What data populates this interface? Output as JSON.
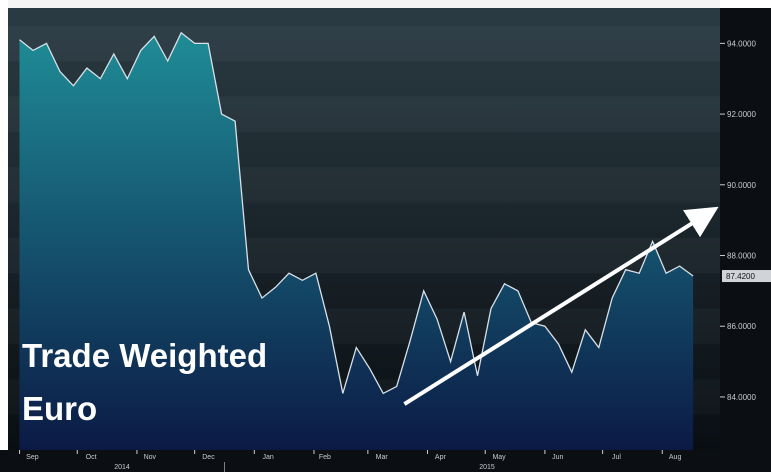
{
  "overlay_text": [
    "Trade Weighted",
    "Euro"
  ],
  "colors": {
    "background_top": "#2d3e46",
    "background_bottom": "#0a0f14",
    "area_top": "#1f8c96",
    "area_bottom": "#0b1a45",
    "line": "#d8e0e8",
    "arrow": "#ffffff",
    "axis_text": "#c8ccd0",
    "last_value_box": "#d0d4d8"
  },
  "chart_data": {
    "type": "area",
    "title": "",
    "xlabel": "",
    "ylabel": "",
    "ylim": [
      82.5,
      95.0
    ],
    "y_ticks": [
      "94.0000",
      "92.0000",
      "90.0000",
      "88.0000",
      "86.0000",
      "84.0000"
    ],
    "y_tick_values": [
      94,
      92,
      90,
      88,
      86,
      84
    ],
    "last_value_label": "87.4200",
    "last_value": 87.42,
    "x_tick_labels": [
      "Sep",
      "Oct",
      "Nov",
      "Dec",
      "Jan",
      "Feb",
      "Mar",
      "Apr",
      "May",
      "Jun",
      "Jul",
      "Aug"
    ],
    "year_labels": [
      "2014",
      "2015"
    ],
    "grid": false,
    "x": [
      "2014-09-01",
      "2014-09-08",
      "2014-09-15",
      "2014-09-22",
      "2014-09-29",
      "2014-10-06",
      "2014-10-13",
      "2014-10-20",
      "2014-10-27",
      "2014-11-03",
      "2014-11-10",
      "2014-11-17",
      "2014-11-24",
      "2014-12-01",
      "2014-12-08",
      "2014-12-15",
      "2014-12-22",
      "2014-12-29",
      "2015-01-05",
      "2015-01-12",
      "2015-01-19",
      "2015-01-26",
      "2015-02-02",
      "2015-02-09",
      "2015-02-16",
      "2015-02-23",
      "2015-03-02",
      "2015-03-09",
      "2015-03-16",
      "2015-03-23",
      "2015-03-30",
      "2015-04-06",
      "2015-04-13",
      "2015-04-20",
      "2015-04-27",
      "2015-05-04",
      "2015-05-11",
      "2015-05-18",
      "2015-05-25",
      "2015-06-01",
      "2015-06-08",
      "2015-06-15",
      "2015-06-22",
      "2015-06-29",
      "2015-07-06",
      "2015-07-13",
      "2015-07-20",
      "2015-07-27",
      "2015-08-03",
      "2015-08-10",
      "2015-08-17"
    ],
    "series": [
      {
        "name": "",
        "values": [
          94.1,
          93.8,
          94.0,
          93.2,
          92.8,
          93.3,
          93.0,
          93.7,
          93.0,
          93.8,
          94.2,
          93.5,
          94.3,
          94.0,
          94.0,
          92.0,
          91.8,
          87.6,
          86.8,
          87.1,
          87.5,
          87.3,
          87.5,
          86.0,
          84.1,
          85.4,
          84.8,
          84.1,
          84.3,
          85.6,
          87.0,
          86.2,
          85.0,
          86.4,
          84.6,
          86.5,
          87.2,
          87.0,
          86.1,
          86.0,
          85.5,
          84.7,
          85.9,
          85.4,
          86.8,
          87.6,
          87.5,
          88.4,
          87.5,
          87.7,
          87.42
        ]
      }
    ],
    "annotation_arrow": {
      "from": {
        "date": "2015-03-20",
        "value": 83.8
      },
      "to": {
        "date": "2015-08-25",
        "value": 89.2
      }
    }
  }
}
